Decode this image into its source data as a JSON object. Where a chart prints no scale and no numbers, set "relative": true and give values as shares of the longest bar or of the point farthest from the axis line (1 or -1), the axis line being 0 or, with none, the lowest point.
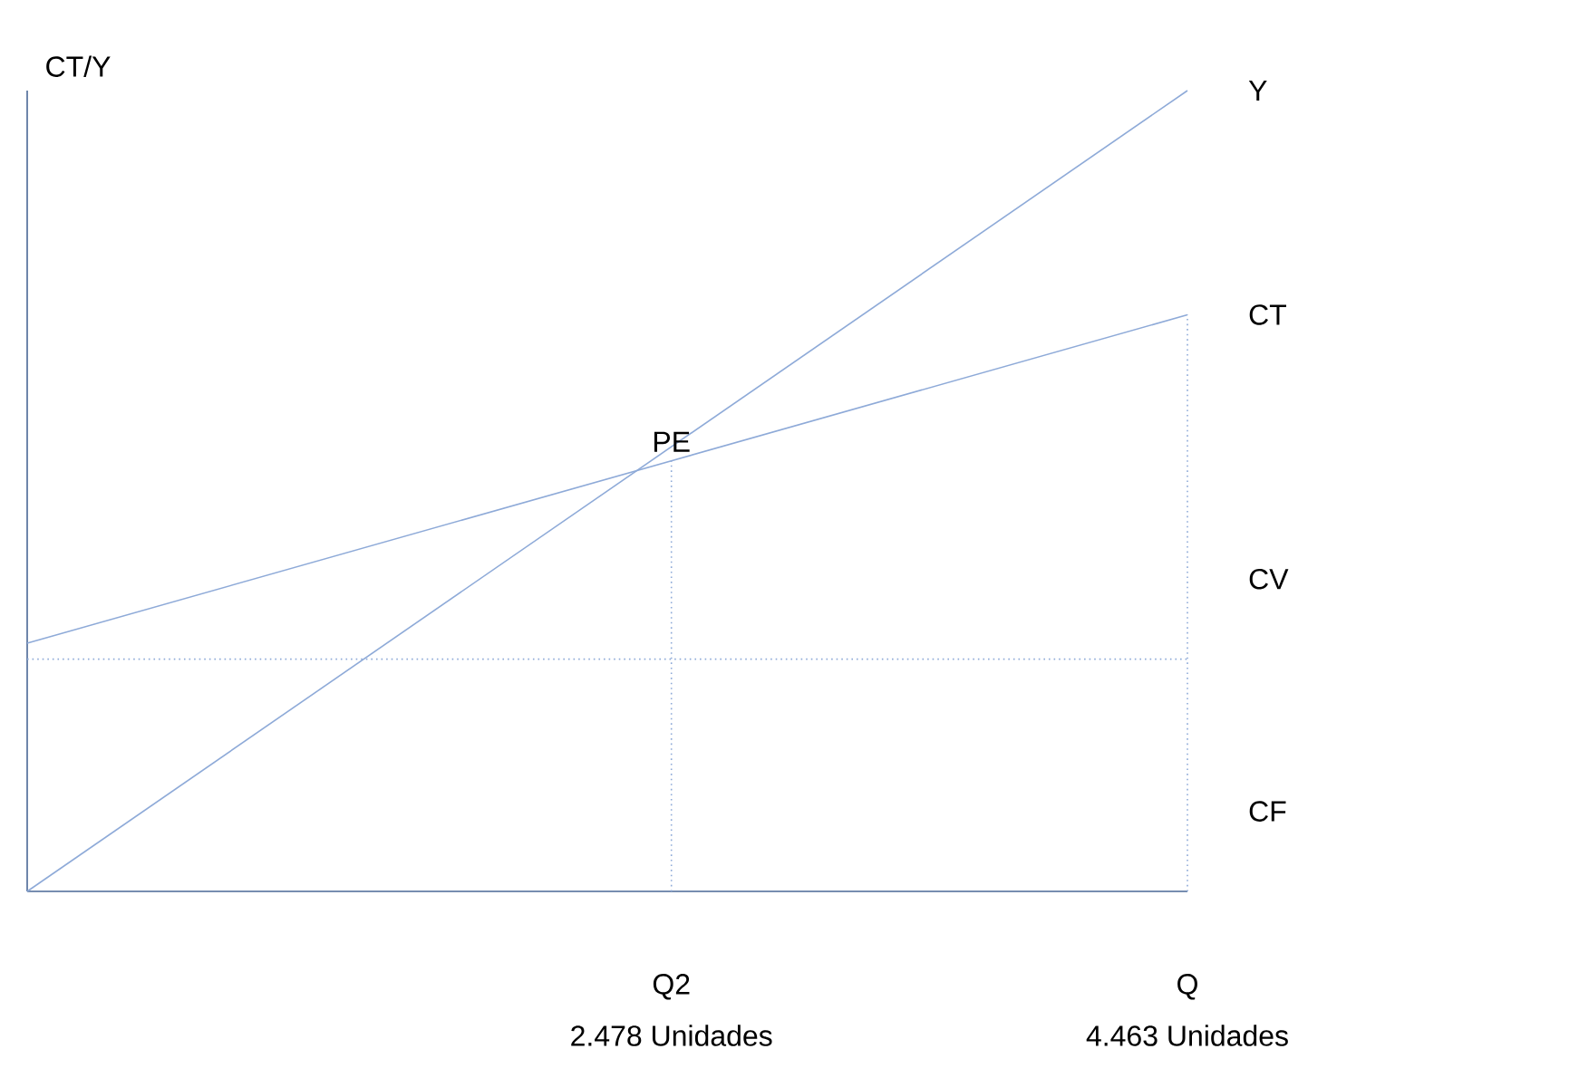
{
  "chart_data": {
    "type": "line",
    "relative": true,
    "ylabel": "CT/Y",
    "line_style": "solid",
    "x": [
      0,
      4463
    ],
    "xlim": [
      0,
      4463
    ],
    "xticks": [
      {
        "value": 2478,
        "label": "2.478 Unidades"
      },
      {
        "value": 4463,
        "label": "4.463 Unidades"
      }
    ],
    "series": [
      {
        "name": "Y",
        "color": "#8eaad8",
        "values": [
          0,
          1
        ]
      },
      {
        "name": "CT",
        "color": "#8eaad8",
        "values": [
          0.31,
          0.72
        ]
      }
    ],
    "ref_lines": [
      {
        "axis": "y",
        "value": 0.29,
        "color": "#8eaad8",
        "line_style": "dotted"
      },
      {
        "axis": "x",
        "value": 2478,
        "color": "#8eaad8",
        "line_style": "dotted"
      },
      {
        "axis": "x",
        "value": 4463,
        "color": "#8eaad8",
        "line_style": "dotted"
      }
    ],
    "annotations": [
      {
        "text": "PE",
        "x": 2478,
        "y": 0.55
      },
      "CV",
      "CF",
      "Q2",
      "Q"
    ]
  }
}
